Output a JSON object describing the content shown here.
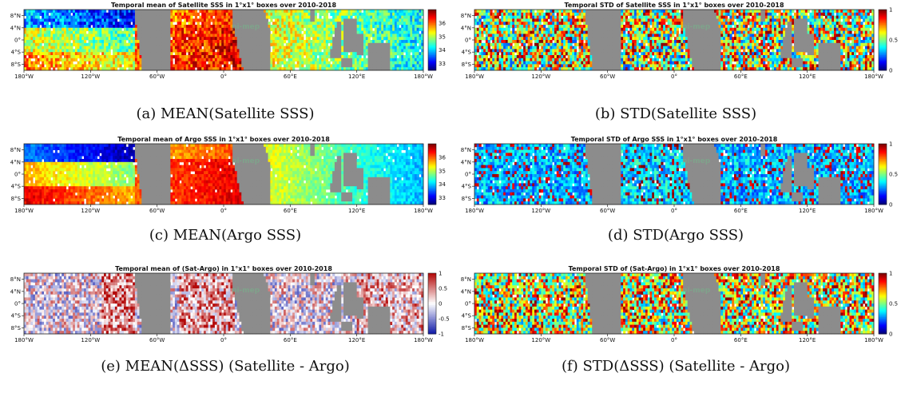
{
  "chart_data": [
    {
      "type": "heatmap",
      "title": "Temporal mean of Satellite SSS in 1°x1° boxes over 2010-2018",
      "caption": "(a) MEAN(Satellite SSS)",
      "colorbar": {
        "ticks": [
          "36",
          "35",
          "34",
          "33"
        ],
        "range": [
          32.5,
          37.0
        ],
        "colormap": "jet"
      },
      "xticks": [
        "180°W",
        "120°W",
        "60°W",
        "0°",
        "60°E",
        "120°E",
        "180°W"
      ],
      "yticks": [
        "8°N",
        "4°N",
        "0°",
        "4°S",
        "8°S"
      ],
      "xlim": [
        -180,
        180
      ],
      "ylim": [
        -10,
        10
      ],
      "field": "mean_sat"
    },
    {
      "type": "heatmap",
      "title": "Temporal STD of Satellite SSS in 1°x1° boxes over 2010-2018",
      "caption": "(b) STD(Satellite SSS)",
      "colorbar": {
        "ticks": [
          "1",
          "0.5",
          "0"
        ],
        "range": [
          0,
          1
        ],
        "colormap": "jet"
      },
      "xticks": [
        "180°W",
        "120°W",
        "60°W",
        "0°",
        "60°E",
        "120°E",
        "180°W"
      ],
      "yticks": [
        "8°N",
        "4°N",
        "0°",
        "4°S",
        "8°S"
      ],
      "xlim": [
        -180,
        180
      ],
      "ylim": [
        -10,
        10
      ],
      "field": "std_sat"
    },
    {
      "type": "heatmap",
      "title": "Temporal mean of Argo SSS in 1°x1° boxes over 2010-2018",
      "caption": "(c) MEAN(Argo SSS)",
      "colorbar": {
        "ticks": [
          "36",
          "35",
          "34",
          "33"
        ],
        "range": [
          32.5,
          37.0
        ],
        "colormap": "jet"
      },
      "xticks": [
        "180°W",
        "120°W",
        "60°W",
        "0°",
        "60°E",
        "120°E",
        "180°W"
      ],
      "yticks": [
        "8°N",
        "4°N",
        "0°",
        "4°S",
        "8°S"
      ],
      "xlim": [
        -180,
        180
      ],
      "ylim": [
        -10,
        10
      ],
      "field": "mean_argo"
    },
    {
      "type": "heatmap",
      "title": "Temporal STD of Argo SSS in 1°x1° boxes over 2010-2018",
      "caption": "(d) STD(Argo SSS)",
      "colorbar": {
        "ticks": [
          "1",
          "0.5",
          "0"
        ],
        "range": [
          0,
          1
        ],
        "colormap": "jet"
      },
      "xticks": [
        "180°W",
        "120°W",
        "60°W",
        "0°",
        "60°E",
        "120°E",
        "180°W"
      ],
      "yticks": [
        "8°N",
        "4°N",
        "0°",
        "4°S",
        "8°S"
      ],
      "xlim": [
        -180,
        180
      ],
      "ylim": [
        -10,
        10
      ],
      "field": "std_argo"
    },
    {
      "type": "heatmap",
      "title": "Temporal mean of (Sat-Argo) in 1°x1° boxes over 2010-2018",
      "caption": "(e) MEAN(ΔSSS) (Satellite - Argo)",
      "colorbar": {
        "ticks": [
          "1",
          "0.5",
          "0",
          "-0.5",
          "-1"
        ],
        "range": [
          -1,
          1
        ],
        "colormap": "bwr"
      },
      "xticks": [
        "180°W",
        "120°W",
        "60°W",
        "0°",
        "60°E",
        "120°E",
        "180°W"
      ],
      "yticks": [
        "8°N",
        "4°N",
        "0°",
        "4°S",
        "8°S"
      ],
      "xlim": [
        -180,
        180
      ],
      "ylim": [
        -10,
        10
      ],
      "field": "mean_diff"
    },
    {
      "type": "heatmap",
      "title": "Temporal STD of (Sat-Argo) in 1°x1° boxes over 2010-2018",
      "caption": "(f) STD(ΔSSS) (Satellite - Argo)",
      "colorbar": {
        "ticks": [
          "1",
          "0.5",
          "0"
        ],
        "range": [
          0,
          1
        ],
        "colormap": "jet"
      },
      "xticks": [
        "180°W",
        "120°W",
        "60°W",
        "0°",
        "60°E",
        "120°E",
        "180°W"
      ],
      "yticks": [
        "8°N",
        "4°N",
        "0°",
        "4°S",
        "8°S"
      ],
      "xlim": [
        -180,
        180
      ],
      "ylim": [
        -10,
        10
      ],
      "field": "std_diff"
    }
  ],
  "colors": {
    "land": "#8c8c8c",
    "coast": "#222222"
  },
  "watermark": "pi-mep"
}
